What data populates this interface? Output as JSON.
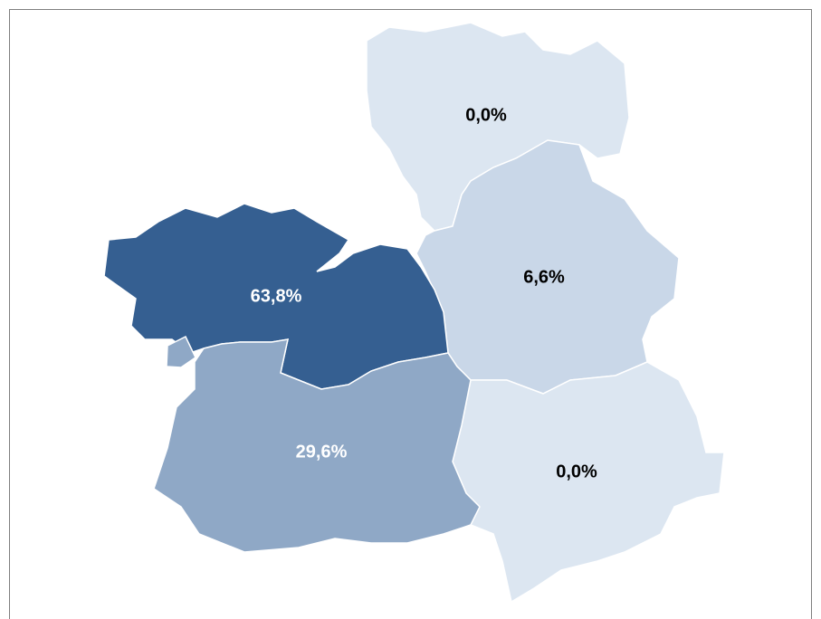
{
  "map": {
    "regions": [
      {
        "value": 0,
        "value_label": "0,0%",
        "color": "#dce6f1",
        "label_color": "#000000"
      },
      {
        "value": 6.6,
        "value_label": "6,6%",
        "color": "#c9d7e8",
        "label_color": "#000000"
      },
      {
        "value": 63.8,
        "value_label": "63,8%",
        "color": "#355f91",
        "label_color": "#ffffff"
      },
      {
        "value": 29.6,
        "value_label": "29,6%",
        "color": "#8fa8c6",
        "label_color": "#ffffff"
      },
      {
        "value": 0,
        "value_label": "0,0%",
        "color": "#dce6f1",
        "label_color": "#000000"
      }
    ]
  }
}
